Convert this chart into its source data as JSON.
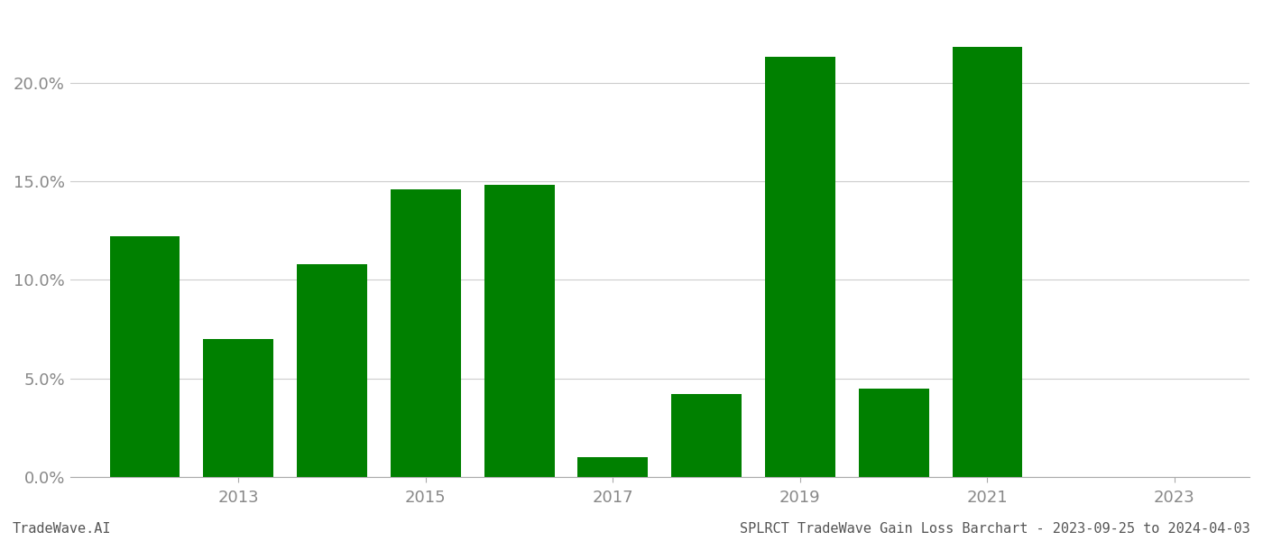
{
  "bar_positions": [
    2012,
    2013,
    2014,
    2015,
    2016,
    2017,
    2018,
    2019,
    2020,
    2021,
    2022
  ],
  "values": [
    0.122,
    0.07,
    0.108,
    0.146,
    0.148,
    0.01,
    0.042,
    0.213,
    0.045,
    0.218,
    0.0
  ],
  "bar_color": "#008000",
  "background_color": "#ffffff",
  "ylim": [
    0,
    0.235
  ],
  "yticks": [
    0.0,
    0.05,
    0.1,
    0.15,
    0.2
  ],
  "ytick_labels": [
    "0.0%",
    "5.0%",
    "10.0%",
    "15.0%",
    "20.0%"
  ],
  "xtick_positions": [
    2013,
    2015,
    2017,
    2019,
    2021,
    2023
  ],
  "xtick_labels": [
    "2013",
    "2015",
    "2017",
    "2019",
    "2021",
    "2023"
  ],
  "xlim": [
    2011.2,
    2023.8
  ],
  "bar_width": 0.75,
  "grid_color": "#cccccc",
  "tick_color": "#888888",
  "spine_color": "#aaaaaa",
  "font_color": "#555555",
  "footer_left": "TradeWave.AI",
  "footer_right": "SPLRCT TradeWave Gain Loss Barchart - 2023-09-25 to 2024-04-03",
  "footer_font_size": 11,
  "tick_font_size": 13
}
